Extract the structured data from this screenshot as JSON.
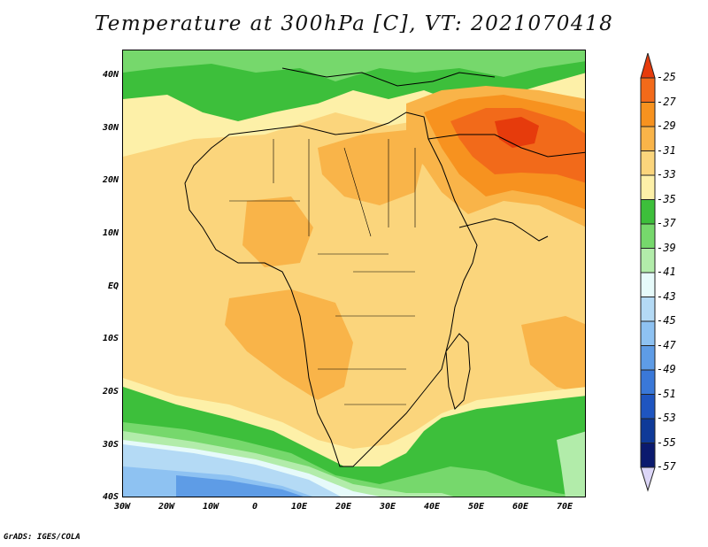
{
  "title": "Temperature at 300hPa [C], VT: 2021070418",
  "footer": "GrADS: IGES/COLA",
  "map": {
    "lon_range": [
      -30,
      75
    ],
    "lat_range": [
      -40,
      45
    ],
    "lat_ticks": [
      "40N",
      "30N",
      "20N",
      "10N",
      "EQ",
      "10S",
      "20S",
      "30S",
      "40S"
    ],
    "lon_ticks": [
      "30W",
      "20W",
      "10W",
      "0",
      "10E",
      "20E",
      "30E",
      "40E",
      "50E",
      "60E",
      "70E"
    ]
  },
  "colorbar": {
    "labels": [
      "-25",
      "-27",
      "-29",
      "-31",
      "-33",
      "-35",
      "-37",
      "-39",
      "-41",
      "-43",
      "-45",
      "-47",
      "-49",
      "-51",
      "-53",
      "-55",
      "-57"
    ],
    "colors": [
      "#e63b0c",
      "#f26a1a",
      "#f7921f",
      "#f9b449",
      "#fbd57c",
      "#fdf0a8",
      "#3dbf3b",
      "#76d86c",
      "#b2ecaa",
      "#e6fafa",
      "#b4daf5",
      "#8ec2f2",
      "#5e9ce6",
      "#3a78d8",
      "#1f55c0",
      "#0f3a98",
      "#0b1a6e",
      "#dcd6f7"
    ]
  }
}
